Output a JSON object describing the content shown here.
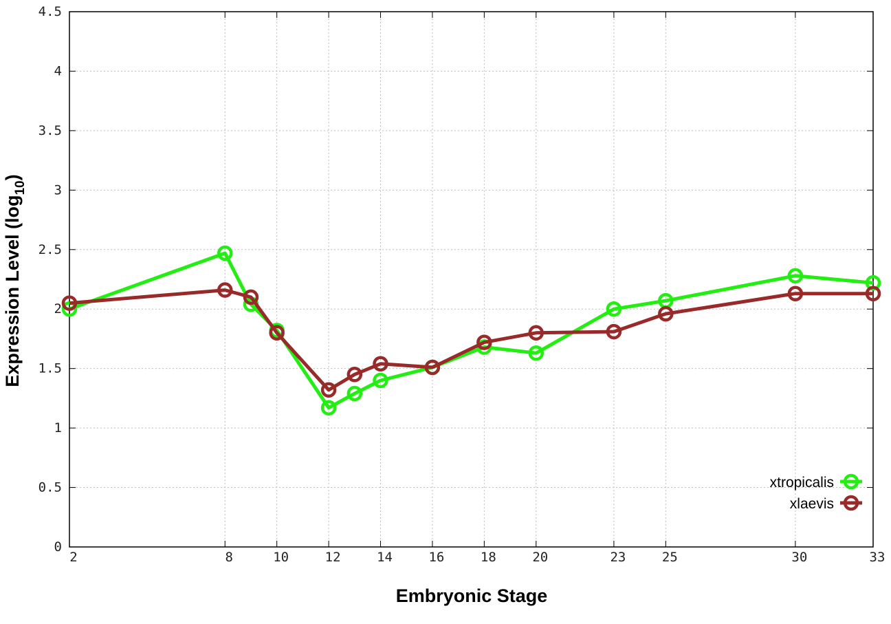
{
  "chart_data": {
    "type": "line",
    "xlabel": "Embryonic Stage",
    "ylabel_main": "Expression Level (log",
    "ylabel_sub": "10",
    "ylabel_end": ")",
    "x": [
      2,
      8,
      9,
      10,
      12,
      13,
      14,
      16,
      18,
      20,
      23,
      25,
      30,
      33
    ],
    "x_ticks": [
      2,
      8,
      10,
      12,
      14,
      16,
      18,
      20,
      23,
      25,
      30,
      33
    ],
    "x_tick_labels": [
      "2",
      "8",
      "10",
      "12",
      "14",
      "16",
      "18",
      "20",
      "23",
      "25",
      "30",
      "33"
    ],
    "xlim": [
      2,
      33
    ],
    "ylim": [
      0,
      4.5
    ],
    "y_ticks": [
      0,
      0.5,
      1,
      1.5,
      2,
      2.5,
      3,
      3.5,
      4,
      4.5
    ],
    "y_tick_labels": [
      "0",
      "0.5",
      "1",
      "1.5",
      "2",
      "2.5",
      "3",
      "3.5",
      "4",
      "4.5"
    ],
    "grid": true,
    "legend_position": "bottom-right",
    "series": [
      {
        "name": "xtropicalis",
        "color": "#22ee11",
        "values": [
          2.0,
          2.47,
          2.04,
          1.82,
          1.17,
          1.29,
          1.4,
          1.51,
          1.68,
          1.63,
          2.0,
          2.07,
          2.28,
          2.22
        ]
      },
      {
        "name": "xlaevis",
        "color": "#992a2a",
        "values": [
          2.05,
          2.16,
          2.1,
          1.8,
          1.32,
          1.45,
          1.54,
          1.51,
          1.72,
          1.8,
          1.81,
          1.96,
          2.13,
          2.13
        ]
      }
    ]
  }
}
